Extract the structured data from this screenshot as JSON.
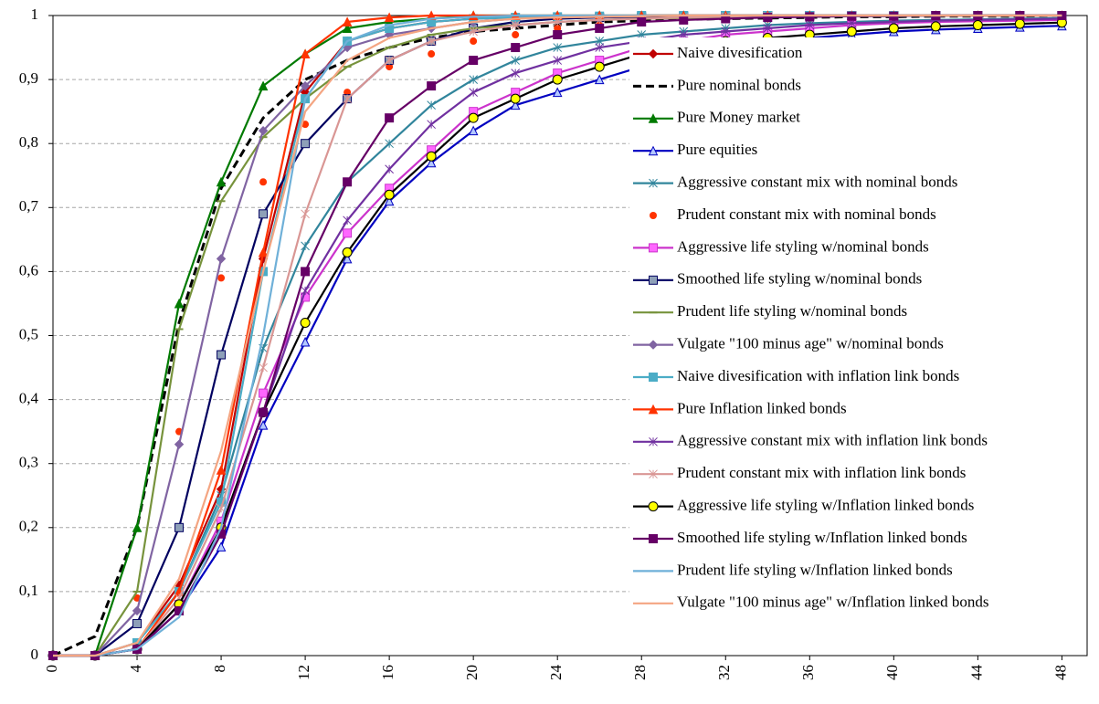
{
  "chart_data": {
    "type": "line",
    "x": [
      0,
      2,
      4,
      6,
      8,
      10,
      12,
      14,
      16,
      18,
      20,
      22,
      24,
      26,
      28,
      30,
      32,
      34,
      36,
      38,
      40,
      42,
      44,
      46,
      48
    ],
    "xlim": [
      0,
      49.2
    ],
    "xticks": [
      0,
      4,
      8,
      12,
      16,
      20,
      24,
      28,
      32,
      36,
      40,
      44,
      48
    ],
    "ylim": [
      0,
      1
    ],
    "yticks": [
      0,
      {
        "value": 0.1,
        "label": "0,1"
      },
      {
        "value": 0.2,
        "label": "0,2"
      },
      {
        "value": 0.3,
        "label": "0,3"
      },
      {
        "value": 0.4,
        "label": "0,4"
      },
      {
        "value": 0.5,
        "label": "0,5"
      },
      {
        "value": 0.6,
        "label": "0,6"
      },
      {
        "value": 0.7,
        "label": "0,7"
      },
      {
        "value": 0.8,
        "label": "0,8"
      },
      {
        "value": 0.9,
        "label": "0,9"
      },
      1
    ],
    "grid": true,
    "legend": "right",
    "series": [
      {
        "name": "Naive divesification",
        "color": "#C00000",
        "marker": "diamond",
        "values": [
          0,
          0,
          0.02,
          0.11,
          0.26,
          0.62,
          0.88,
          0.96,
          0.98,
          0.99,
          0.995,
          0.997,
          0.998,
          0.999,
          1,
          1,
          1,
          1,
          1,
          1,
          1,
          1,
          1,
          1,
          1
        ]
      },
      {
        "name": "Pure nominal bonds",
        "color": "#000000",
        "marker": "none",
        "dash": true,
        "values": [
          0,
          0.03,
          0.2,
          0.52,
          0.73,
          0.84,
          0.9,
          0.93,
          0.95,
          0.965,
          0.975,
          0.98,
          0.985,
          0.99,
          0.992,
          0.994,
          0.995,
          0.996,
          0.997,
          0.998,
          0.998,
          0.999,
          0.999,
          0.999,
          1
        ]
      },
      {
        "name": "Pure Money market",
        "color": "#007A00",
        "marker": "triangle",
        "values": [
          0,
          0,
          0.2,
          0.55,
          0.74,
          0.89,
          0.94,
          0.98,
          0.99,
          0.995,
          1,
          1,
          1,
          1,
          1,
          1,
          1,
          1,
          1,
          1,
          1,
          1,
          1,
          1,
          1
        ]
      },
      {
        "name": "Pure equities",
        "color": "#0000C0",
        "marker": "triangle",
        "marker_fill": "#B4C8FF",
        "values": [
          0,
          0,
          0.01,
          0.07,
          0.17,
          0.36,
          0.49,
          0.62,
          0.71,
          0.77,
          0.82,
          0.86,
          0.88,
          0.9,
          0.92,
          0.94,
          0.95,
          0.96,
          0.965,
          0.97,
          0.975,
          0.978,
          0.98,
          0.982,
          0.984
        ]
      },
      {
        "name": "Aggressive constant mix with nominal bonds",
        "color": "#31859C",
        "marker": "x",
        "values": [
          0,
          0,
          0.02,
          0.1,
          0.25,
          0.48,
          0.64,
          0.74,
          0.8,
          0.86,
          0.9,
          0.93,
          0.95,
          0.96,
          0.97,
          0.975,
          0.98,
          0.985,
          0.988,
          0.99,
          0.992,
          0.993,
          0.994,
          0.995,
          0.996
        ]
      },
      {
        "name": "Prudent constant mix with nominal bonds",
        "color": "#FF3300",
        "marker": "circle",
        "line": false,
        "values": [
          0,
          0,
          0.09,
          0.35,
          0.59,
          0.74,
          0.83,
          0.88,
          0.92,
          0.94,
          0.96,
          0.97,
          0.98,
          0.985,
          0.99,
          0.992,
          0.994,
          0.995,
          0.996,
          0.997,
          0.998,
          0.998,
          0.999,
          0.999,
          0.999
        ]
      },
      {
        "name": "Aggressive life styling w/nominal bonds",
        "color": "#CC33CC",
        "marker": "square",
        "marker_fill": "#FF66FF",
        "values": [
          0,
          0,
          0.01,
          0.08,
          0.21,
          0.41,
          0.56,
          0.66,
          0.73,
          0.79,
          0.85,
          0.88,
          0.91,
          0.93,
          0.95,
          0.96,
          0.97,
          0.975,
          0.98,
          0.985,
          0.988,
          0.99,
          0.991,
          0.992,
          0.993
        ]
      },
      {
        "name": "Smoothed life styling w/nominal bonds",
        "color": "#000060",
        "marker": "square",
        "marker_fill": "#8EA0B8",
        "values": [
          0,
          0,
          0.05,
          0.2,
          0.47,
          0.69,
          0.8,
          0.87,
          0.93,
          0.96,
          0.98,
          0.99,
          0.995,
          0.997,
          0.998,
          0.999,
          1,
          1,
          1,
          1,
          1,
          1,
          1,
          1,
          1
        ]
      },
      {
        "name": "Prudent life styling w/nominal bonds",
        "color": "#77933C",
        "marker": "dash",
        "values": [
          0,
          0,
          0.1,
          0.51,
          0.71,
          0.81,
          0.87,
          0.92,
          0.95,
          0.97,
          0.98,
          0.985,
          0.99,
          0.993,
          0.995,
          0.996,
          0.997,
          0.998,
          0.998,
          0.999,
          0.999,
          1,
          1,
          1,
          1
        ]
      },
      {
        "name": "Vulgate \"100 minus age\" w/nominal bonds",
        "color": "#8064A2",
        "marker": "diamond",
        "values": [
          0,
          0,
          0.07,
          0.33,
          0.62,
          0.82,
          0.89,
          0.95,
          0.97,
          0.98,
          0.99,
          0.995,
          0.997,
          0.998,
          0.999,
          1,
          1,
          1,
          1,
          1,
          1,
          1,
          1,
          1,
          1
        ]
      },
      {
        "name": "Naive divesification with inflation link bonds",
        "color": "#4BACC6",
        "marker": "square",
        "values": [
          0,
          0,
          0.02,
          0.1,
          0.24,
          0.6,
          0.87,
          0.96,
          0.98,
          0.99,
          0.995,
          0.997,
          0.998,
          0.999,
          1,
          1,
          1,
          1,
          1,
          1,
          1,
          1,
          1,
          1,
          1
        ]
      },
      {
        "name": "Pure Inflation linked bonds",
        "color": "#FF3300",
        "marker": "triangle",
        "values": [
          0,
          0,
          0.01,
          0.1,
          0.29,
          0.63,
          0.94,
          0.99,
          0.997,
          1,
          1,
          1,
          1,
          1,
          1,
          1,
          1,
          1,
          1,
          1,
          1,
          1,
          1,
          1,
          1
        ]
      },
      {
        "name": "Aggressive constant mix with inflation link bonds",
        "color": "#7030A0",
        "marker": "x",
        "values": [
          0,
          0,
          0.01,
          0.08,
          0.2,
          0.38,
          0.57,
          0.68,
          0.76,
          0.83,
          0.88,
          0.91,
          0.93,
          0.95,
          0.96,
          0.97,
          0.975,
          0.98,
          0.985,
          0.988,
          0.99,
          0.992,
          0.993,
          0.994,
          0.995
        ]
      },
      {
        "name": "Prudent constant mix with inflation link bonds",
        "color": "#D99694",
        "marker": "x",
        "values": [
          0,
          0,
          0.01,
          0.09,
          0.23,
          0.45,
          0.69,
          0.87,
          0.93,
          0.96,
          0.975,
          0.985,
          0.99,
          0.993,
          0.995,
          0.997,
          0.998,
          0.999,
          0.999,
          1,
          1,
          1,
          1,
          1,
          1
        ]
      },
      {
        "name": "Aggressive life styling w/Inflation linked bonds",
        "color": "#000000",
        "marker": "circle",
        "marker_fill": "#FFFF00",
        "values": [
          0,
          0,
          0.01,
          0.08,
          0.2,
          0.38,
          0.52,
          0.63,
          0.72,
          0.78,
          0.84,
          0.87,
          0.9,
          0.92,
          0.94,
          0.95,
          0.96,
          0.965,
          0.97,
          0.975,
          0.98,
          0.983,
          0.985,
          0.987,
          0.989
        ]
      },
      {
        "name": "Smoothed life styling w/Inflation linked bonds",
        "color": "#660066",
        "marker": "square",
        "values": [
          0,
          0,
          0.01,
          0.07,
          0.19,
          0.38,
          0.6,
          0.74,
          0.84,
          0.89,
          0.93,
          0.95,
          0.97,
          0.98,
          0.99,
          0.993,
          0.995,
          0.997,
          0.998,
          0.999,
          0.999,
          1,
          1,
          1,
          1
        ]
      },
      {
        "name": "Prudent life styling w/Inflation linked bonds",
        "color": "#6FB0D8",
        "marker": "none",
        "values": [
          0,
          0,
          0.01,
          0.06,
          0.2,
          0.5,
          0.87,
          0.96,
          0.985,
          0.995,
          0.998,
          1,
          1,
          1,
          1,
          1,
          1,
          1,
          1,
          1,
          1,
          1,
          1,
          1,
          1
        ]
      },
      {
        "name": "Vulgate \"100 minus age\" w/Inflation linked bonds",
        "color": "#F4A582",
        "marker": "none",
        "values": [
          0,
          0,
          0.02,
          0.12,
          0.32,
          0.6,
          0.85,
          0.93,
          0.965,
          0.98,
          0.99,
          0.995,
          0.997,
          0.998,
          0.999,
          1,
          1,
          1,
          1,
          1,
          1,
          1,
          1,
          1,
          1
        ]
      }
    ]
  }
}
